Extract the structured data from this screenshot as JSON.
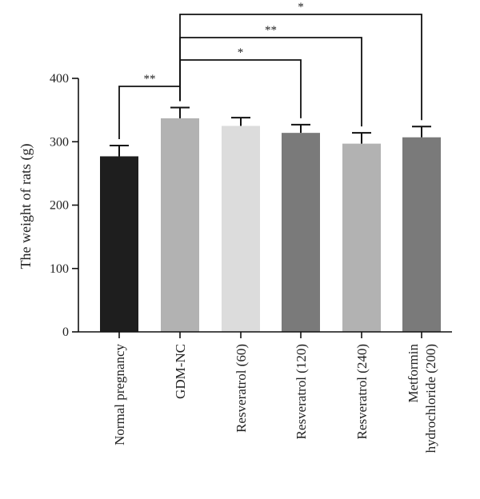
{
  "chart_data": {
    "type": "bar",
    "title": "",
    "xlabel": "",
    "ylabel": "The weight of rats (g)",
    "ylim": [
      0,
      400
    ],
    "yticks": [
      0,
      100,
      200,
      300,
      400
    ],
    "grid": false,
    "categories": [
      [
        "Normal pregnancy"
      ],
      [
        "GDM-NC"
      ],
      [
        "Resveratrol (60)"
      ],
      [
        "Resveratrol (120)"
      ],
      [
        "Resveratrol (240)"
      ],
      [
        "Metformin",
        "hydrochloride (200)"
      ]
    ],
    "values": [
      277,
      337,
      325,
      314,
      297,
      307
    ],
    "errors": [
      17,
      17,
      13,
      13,
      17,
      17
    ],
    "colors": [
      "#1e1e1e",
      "#b2b2b2",
      "#dcdcdc",
      "#7a7a7a",
      "#b2b2b2",
      "#7a7a7a"
    ],
    "significance": [
      {
        "from": 0,
        "to": 1,
        "label": "**"
      },
      {
        "from": 1,
        "to": 3,
        "label": "*"
      },
      {
        "from": 1,
        "to": 4,
        "label": "**"
      },
      {
        "from": 1,
        "to": 5,
        "label": "*"
      }
    ]
  }
}
